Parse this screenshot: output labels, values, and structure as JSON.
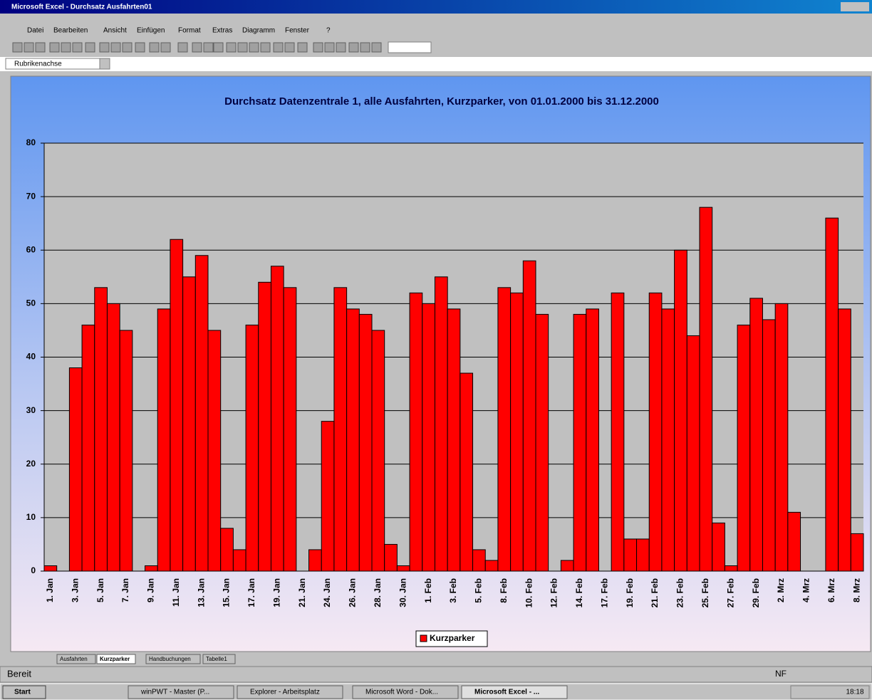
{
  "window": {
    "title": "Microsoft Excel - Durchsatz Ausfahrten01",
    "menu": [
      "Datei",
      "Bearbeiten",
      "Ansicht",
      "Einfügen",
      "Format",
      "Extras",
      "Diagramm",
      "Fenster",
      "?"
    ],
    "name_box": "Rubrikenachse",
    "sheet_tabs": [
      "Ausfahrten",
      "Kurzparker",
      "Handbuchungen",
      "Tabelle1"
    ],
    "status": "Bereit",
    "status_indicator": "NF"
  },
  "taskbar": {
    "start": "Start",
    "items": [
      "winPWT - Master (P...",
      "Explorer - Arbeitsplatz",
      "Microsoft Word - Dok...",
      "Microsoft Excel - ..."
    ],
    "clock": "18:18"
  },
  "chart_data": {
    "type": "bar",
    "title": "Durchsatz Datenzentrale 1, alle Ausfahrten, Kurzparker, von 01.01.2000 bis 31.12.2000",
    "categories": [
      "1. Jan",
      null,
      "3. Jan",
      null,
      "5. Jan",
      null,
      "7. Jan",
      null,
      "9. Jan",
      null,
      "11. Jan",
      null,
      "13. Jan",
      null,
      "15. Jan",
      null,
      "17. Jan",
      null,
      "19. Jan",
      null,
      "21. Jan",
      null,
      "24. Jan",
      null,
      "26. Jan",
      null,
      "28. Jan",
      null,
      "30. Jan",
      null,
      "1. Feb",
      null,
      "3. Feb",
      null,
      "5. Feb",
      null,
      "8. Feb",
      null,
      "10. Feb",
      null,
      "12. Feb",
      null,
      "14. Feb",
      null,
      "17. Feb",
      null,
      "19. Feb",
      null,
      "21. Feb",
      null,
      "23. Feb",
      null,
      "25. Feb",
      null,
      "27. Feb",
      null,
      "29. Feb",
      null,
      "2. Mrz",
      null,
      "4. Mrz",
      null,
      "6. Mrz",
      null,
      "8. Mrz"
    ],
    "series": [
      {
        "name": "Kurzparker",
        "color": "#ff0000",
        "values": [
          1,
          0,
          38,
          46,
          53,
          50,
          45,
          0,
          1,
          49,
          62,
          55,
          59,
          45,
          8,
          4,
          46,
          54,
          57,
          53,
          0,
          4,
          28,
          53,
          49,
          48,
          45,
          5,
          1,
          52,
          50,
          55,
          49,
          37,
          4,
          2,
          53,
          52,
          58,
          48,
          0,
          2,
          48,
          49,
          0,
          52,
          6,
          6,
          52,
          49,
          60,
          44,
          68,
          9,
          1,
          46,
          51,
          47,
          50,
          11,
          0,
          0,
          66,
          49,
          7
        ]
      }
    ],
    "ylim": [
      0,
      80
    ],
    "yticks": [
      0,
      10,
      20,
      30,
      40,
      50,
      60,
      70,
      80
    ],
    "grid": true,
    "legend": "bottom"
  }
}
